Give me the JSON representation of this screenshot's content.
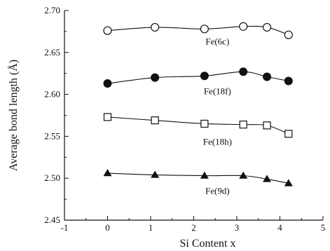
{
  "chart_data": {
    "type": "line",
    "xlabel": "Si Content x",
    "ylabel": "Average bond length (Å)",
    "xlim": [
      -1,
      5
    ],
    "ylim": [
      2.45,
      2.7
    ],
    "xticks": [
      "-1",
      "0",
      "1",
      "2",
      "3",
      "4",
      "5"
    ],
    "yticks": [
      "2.45",
      "2.50",
      "2.55",
      "2.60",
      "2.65",
      "2.70"
    ],
    "grid": false,
    "series": [
      {
        "name": "Fe(6c)",
        "marker": "circle-open",
        "x": [
          0,
          1.1,
          2.25,
          3.15,
          3.7,
          4.2
        ],
        "y": [
          2.676,
          2.68,
          2.678,
          2.681,
          2.68,
          2.671
        ]
      },
      {
        "name": "Fe(18f)",
        "marker": "circle-filled",
        "x": [
          0,
          1.1,
          2.25,
          3.15,
          3.7,
          4.2
        ],
        "y": [
          2.613,
          2.62,
          2.622,
          2.627,
          2.621,
          2.616
        ]
      },
      {
        "name": "Fe(18h)",
        "marker": "square-open",
        "x": [
          0,
          1.1,
          2.25,
          3.15,
          3.7,
          4.2
        ],
        "y": [
          2.573,
          2.569,
          2.565,
          2.564,
          2.563,
          2.553
        ]
      },
      {
        "name": "Fe(9d)",
        "marker": "triangle-filled",
        "x": [
          0,
          1.1,
          2.25,
          3.15,
          3.7,
          4.2
        ],
        "y": [
          2.506,
          2.504,
          2.503,
          2.503,
          2.499,
          2.494
        ]
      }
    ]
  }
}
